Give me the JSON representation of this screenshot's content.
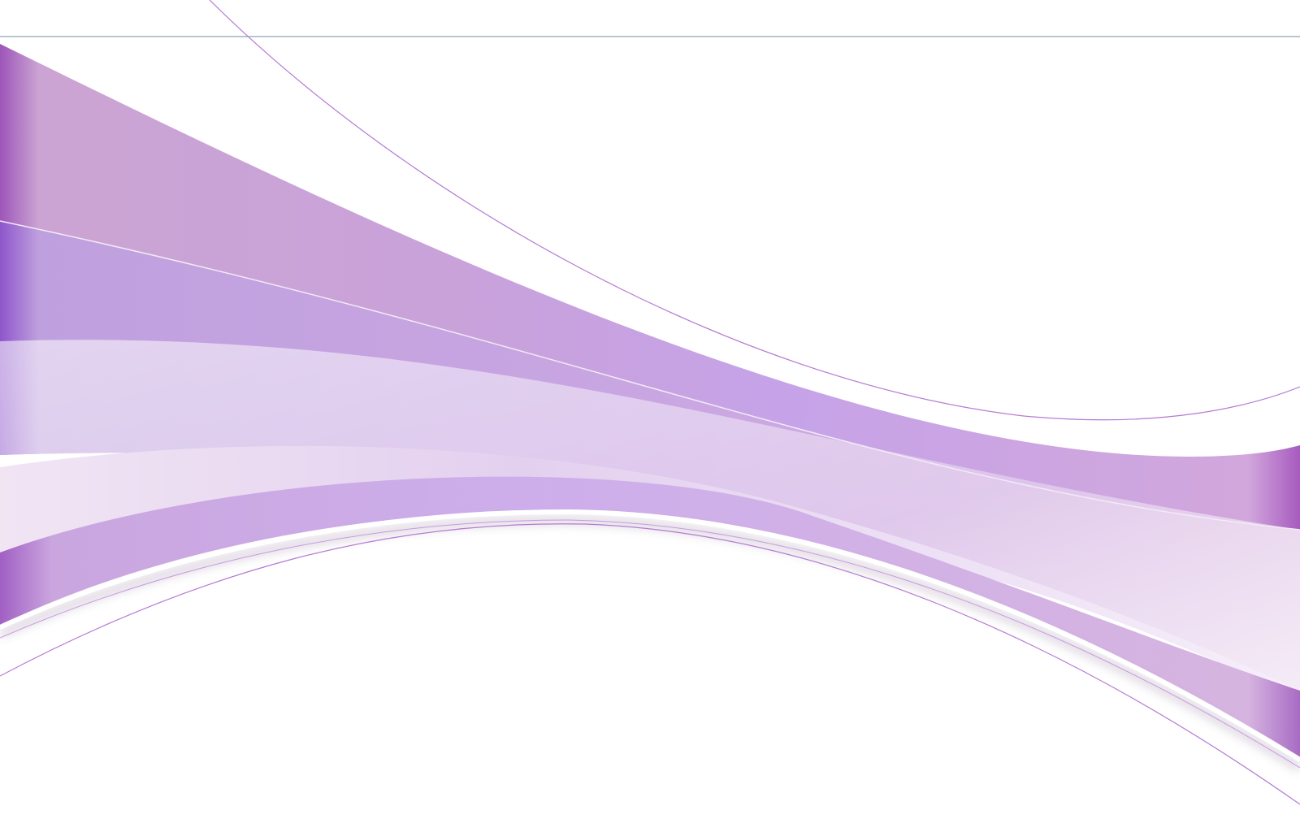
{
  "background": {
    "base_color": "#ffffff",
    "accent_color": "#a25cc5",
    "light_accent_color": "#e8d9f2",
    "rule_color": "#7f95a8"
  }
}
